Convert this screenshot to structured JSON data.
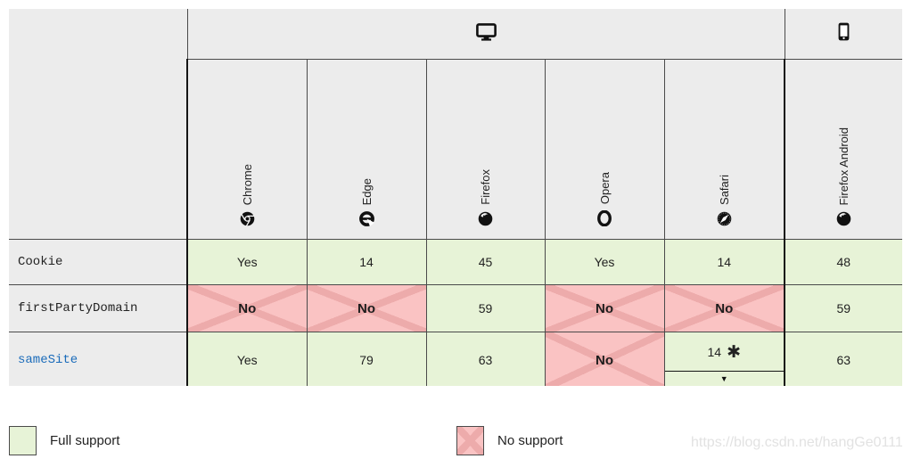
{
  "table": {
    "groups": [
      {
        "name": "desktop",
        "icon": "desktop-icon"
      },
      {
        "name": "mobile",
        "icon": "mobile-icon"
      }
    ],
    "browsers": [
      {
        "name": "Chrome",
        "icon": "chrome-icon",
        "group": "desktop"
      },
      {
        "name": "Edge",
        "icon": "edge-icon",
        "group": "desktop"
      },
      {
        "name": "Firefox",
        "icon": "firefox-icon",
        "group": "desktop"
      },
      {
        "name": "Opera",
        "icon": "opera-icon",
        "group": "desktop"
      },
      {
        "name": "Safari",
        "icon": "safari-icon",
        "group": "desktop"
      },
      {
        "name": "Firefox Android",
        "icon": "firefox-icon",
        "group": "mobile"
      }
    ],
    "rows": [
      {
        "feature": "Cookie",
        "is_link": false,
        "cells": [
          {
            "text": "Yes",
            "support": "full"
          },
          {
            "text": "14",
            "support": "full"
          },
          {
            "text": "45",
            "support": "full"
          },
          {
            "text": "Yes",
            "support": "full"
          },
          {
            "text": "14",
            "support": "full"
          },
          {
            "text": "48",
            "support": "full"
          }
        ]
      },
      {
        "feature": "firstPartyDomain",
        "is_link": false,
        "cells": [
          {
            "text": "No",
            "support": "none"
          },
          {
            "text": "No",
            "support": "none"
          },
          {
            "text": "59",
            "support": "full"
          },
          {
            "text": "No",
            "support": "none"
          },
          {
            "text": "No",
            "support": "none"
          },
          {
            "text": "59",
            "support": "full"
          }
        ]
      },
      {
        "feature": "sameSite",
        "is_link": true,
        "cells": [
          {
            "text": "Yes",
            "support": "full"
          },
          {
            "text": "79",
            "support": "full"
          },
          {
            "text": "63",
            "support": "full"
          },
          {
            "text": "No",
            "support": "none"
          },
          {
            "text": "14",
            "support": "full",
            "note_star": "✱",
            "has_details": true,
            "details_icon": "triangle-down-icon",
            "details_glyph": "▼"
          },
          {
            "text": "63",
            "support": "full"
          }
        ]
      }
    ]
  },
  "legend": {
    "full_label": "Full support",
    "none_label": "No support"
  },
  "watermark": "https://blog.csdn.net/hangGe0111",
  "colors": {
    "full_support_bg": "#e7f3d7",
    "no_support_bg": "#fac3c3",
    "no_support_cross": "#edabab",
    "header_bg": "#ececec",
    "link_blue": "#1a6bba",
    "thin_border": "#4a4a4a",
    "thick_border": "#141414"
  }
}
